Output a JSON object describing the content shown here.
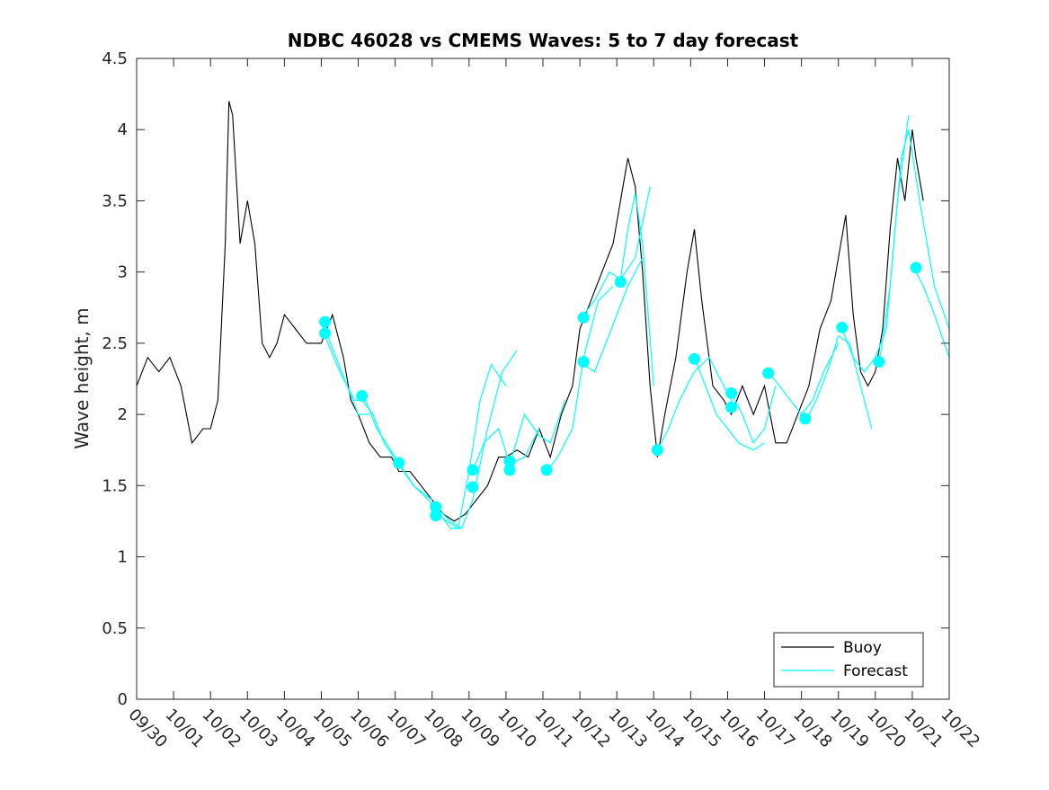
{
  "chart_data": {
    "type": "line",
    "title": "NDBC 46028 vs CMEMS Waves: 5 to 7 day forecast",
    "xlabel": "",
    "ylabel": "Wave height, m",
    "xlim": [
      0,
      22
    ],
    "ylim": [
      0,
      4.5
    ],
    "x_tick_labels": [
      "09/30",
      "10/01",
      "10/02",
      "10/03",
      "10/04",
      "10/05",
      "10/06",
      "10/07",
      "10/08",
      "10/09",
      "10/10",
      "10/11",
      "10/12",
      "10/13",
      "10/14",
      "10/15",
      "10/16",
      "10/17",
      "10/18",
      "10/19",
      "10/20",
      "10/21",
      "10/22"
    ],
    "y_ticks": [
      0,
      0.5,
      1,
      1.5,
      2,
      2.5,
      3,
      3.5,
      4,
      4.5
    ],
    "y_tick_labels": [
      "0",
      "0.5",
      "1",
      "1.5",
      "2",
      "2.5",
      "3",
      "3.5",
      "4",
      "4.5"
    ],
    "legend": {
      "position": "bottom-right",
      "entries": [
        "Buoy",
        "Forecast"
      ]
    },
    "colors": {
      "buoy": "#000000",
      "forecast": "#00ffff"
    },
    "series": [
      {
        "name": "Buoy",
        "x": [
          0,
          0.3,
          0.6,
          0.9,
          1.2,
          1.5,
          1.8,
          2.0,
          2.2,
          2.4,
          2.5,
          2.6,
          2.8,
          3.0,
          3.2,
          3.4,
          3.6,
          3.8,
          4.0,
          4.3,
          4.6,
          5.0,
          5.3,
          5.6,
          5.8,
          6.0,
          6.3,
          6.6,
          6.9,
          7.1,
          7.4,
          7.7,
          8.0,
          8.3,
          8.6,
          8.9,
          9.2,
          9.5,
          9.8,
          10.0,
          10.3,
          10.6,
          10.9,
          11.2,
          11.5,
          11.8,
          12.0,
          12.3,
          12.6,
          12.9,
          13.1,
          13.3,
          13.5,
          13.7,
          13.9,
          14.1,
          14.3,
          14.6,
          14.9,
          15.1,
          15.3,
          15.6,
          15.9,
          16.1,
          16.4,
          16.7,
          17.0,
          17.3,
          17.6,
          17.9,
          18.2,
          18.5,
          18.8,
          19.0,
          19.2,
          19.4,
          19.6,
          19.8,
          20.0,
          20.2,
          20.4,
          20.6,
          20.8,
          21.0,
          21.1,
          21.3
        ],
        "y": [
          2.2,
          2.4,
          2.3,
          2.4,
          2.2,
          1.8,
          1.9,
          1.9,
          2.1,
          3.2,
          4.2,
          4.1,
          3.2,
          3.5,
          3.2,
          2.5,
          2.4,
          2.5,
          2.7,
          2.6,
          2.5,
          2.5,
          2.7,
          2.4,
          2.1,
          2.0,
          1.8,
          1.7,
          1.7,
          1.6,
          1.6,
          1.5,
          1.4,
          1.3,
          1.25,
          1.3,
          1.4,
          1.5,
          1.7,
          1.7,
          1.75,
          1.7,
          1.9,
          1.7,
          2.0,
          2.2,
          2.6,
          2.8,
          3.0,
          3.2,
          3.5,
          3.8,
          3.6,
          3.0,
          2.2,
          1.7,
          2.0,
          2.4,
          3.0,
          3.3,
          2.8,
          2.2,
          2.1,
          2.0,
          2.2,
          2.0,
          2.2,
          1.8,
          1.8,
          2.0,
          2.2,
          2.6,
          2.8,
          3.1,
          3.4,
          2.7,
          2.3,
          2.2,
          2.3,
          2.6,
          3.3,
          3.8,
          3.5,
          4.0,
          3.8,
          3.5
        ]
      },
      {
        "name": "Forecast",
        "segments": [
          {
            "x": [
              5.1,
              5.4,
              5.7,
              6.0,
              6.3
            ],
            "y": [
              2.6,
              2.4,
              2.2,
              2.0,
              2.0
            ]
          },
          {
            "x": [
              5.1,
              5.5,
              5.9,
              6.2,
              6.5,
              7.0,
              7.5
            ],
            "y": [
              2.55,
              2.3,
              2.1,
              2.1,
              1.9,
              1.7,
              1.5
            ]
          },
          {
            "x": [
              6.1,
              6.4,
              6.7,
              7.1,
              7.5,
              8.0
            ],
            "y": [
              2.1,
              2.0,
              1.8,
              1.65,
              1.5,
              1.4
            ]
          },
          {
            "x": [
              7.1,
              7.5,
              7.9,
              8.2,
              8.5,
              8.8
            ],
            "y": [
              1.65,
              1.5,
              1.4,
              1.3,
              1.2,
              1.2
            ]
          },
          {
            "x": [
              8.1,
              8.4,
              8.7,
              9.0,
              9.3,
              9.6,
              10.0
            ],
            "y": [
              1.3,
              1.25,
              1.2,
              1.6,
              2.1,
              2.35,
              2.2
            ]
          },
          {
            "x": [
              8.1,
              8.5,
              8.8,
              9.1,
              9.5,
              9.9,
              10.3
            ],
            "y": [
              1.35,
              1.25,
              1.2,
              1.4,
              1.9,
              2.3,
              2.45
            ]
          },
          {
            "x": [
              9.1,
              9.4,
              9.8,
              10.1,
              10.5,
              10.9
            ],
            "y": [
              1.6,
              1.8,
              1.9,
              1.65,
              1.7,
              1.9
            ]
          },
          {
            "x": [
              10.1,
              10.5,
              10.9,
              11.2,
              11.6
            ],
            "y": [
              1.65,
              2.0,
              1.85,
              1.8,
              2.1
            ]
          },
          {
            "x": [
              11.1,
              11.4,
              11.8,
              12.1,
              12.5,
              12.9
            ],
            "y": [
              1.6,
              1.7,
              1.9,
              2.4,
              2.8,
              2.9
            ]
          },
          {
            "x": [
              12.1,
              12.4,
              12.8,
              13.1,
              13.5,
              13.9
            ],
            "y": [
              2.7,
              2.8,
              3.0,
              2.95,
              3.1,
              3.6
            ]
          },
          {
            "x": [
              12.1,
              12.4,
              12.7,
              13.0,
              13.3,
              13.7
            ],
            "y": [
              2.35,
              2.3,
              2.5,
              2.7,
              2.9,
              3.1
            ]
          },
          {
            "x": [
              13.1,
              13.3,
              13.5,
              13.7,
              14.0
            ],
            "y": [
              2.95,
              3.3,
              3.55,
              3.2,
              2.2
            ]
          },
          {
            "x": [
              14.1,
              14.4,
              14.7,
              15.1,
              15.5,
              15.9,
              16.2
            ],
            "y": [
              1.75,
              1.9,
              2.1,
              2.3,
              2.4,
              2.2,
              2.05
            ]
          },
          {
            "x": [
              15.1,
              15.4,
              15.7,
              16.0,
              16.3,
              16.7,
              17.0
            ],
            "y": [
              2.4,
              2.2,
              2.0,
              1.9,
              1.8,
              1.75,
              1.8
            ]
          },
          {
            "x": [
              16.1,
              16.4,
              16.7,
              17.0,
              17.3
            ],
            "y": [
              2.15,
              2.0,
              1.8,
              1.9,
              2.2
            ]
          },
          {
            "x": [
              17.1,
              17.4,
              17.7,
              18.0,
              18.3,
              18.6,
              19.0
            ],
            "y": [
              2.3,
              2.2,
              2.1,
              2.0,
              2.1,
              2.3,
              2.5
            ]
          },
          {
            "x": [
              18.1,
              18.4,
              18.7,
              19.0,
              19.3,
              19.6,
              19.9
            ],
            "y": [
              1.95,
              2.1,
              2.3,
              2.55,
              2.5,
              2.2,
              1.9
            ]
          },
          {
            "x": [
              19.1,
              19.4,
              19.7,
              20.0,
              20.3,
              20.6,
              20.9
            ],
            "y": [
              2.6,
              2.4,
              2.3,
              2.4,
              2.6,
              3.5,
              4.1
            ]
          },
          {
            "x": [
              20.1,
              20.4,
              20.7,
              20.9,
              21.2,
              21.6,
              22.0
            ],
            "y": [
              2.35,
              2.9,
              3.8,
              4.0,
              3.5,
              2.9,
              2.6
            ]
          },
          {
            "x": [
              21.1,
              21.3,
              21.6,
              22.0
            ],
            "y": [
              3.0,
              2.9,
              2.7,
              2.4
            ]
          }
        ],
        "markers": {
          "x": [
            5.1,
            5.1,
            6.1,
            7.1,
            8.1,
            8.1,
            9.1,
            9.1,
            10.1,
            10.1,
            11.1,
            12.1,
            12.1,
            13.1,
            14.1,
            15.1,
            16.1,
            16.1,
            17.1,
            18.1,
            19.1,
            20.1,
            21.1
          ],
          "y": [
            2.65,
            2.57,
            2.13,
            1.66,
            1.35,
            1.29,
            1.61,
            1.49,
            1.67,
            1.61,
            1.61,
            2.68,
            2.37,
            2.93,
            1.75,
            2.39,
            2.15,
            2.05,
            2.29,
            1.97,
            2.61,
            2.37,
            3.03
          ]
        }
      }
    ]
  }
}
